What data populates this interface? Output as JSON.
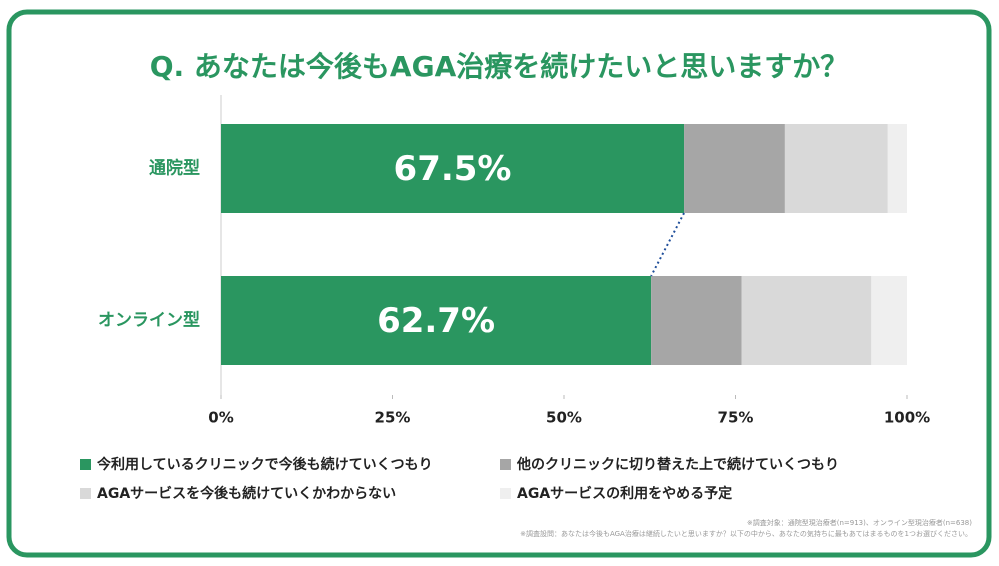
{
  "chart_data": {
    "type": "stacked-barh",
    "title": "Q. あなたは今後もAGA治療を続けたいと思いますか？",
    "categories": [
      "通院型",
      "オンライン型"
    ],
    "series": [
      {
        "name": "今利用しているクリニックで今後も続けていくつもり",
        "color": "#2a9660",
        "values": [
          67.5,
          62.7
        ],
        "value_labels": [
          "67.5%",
          "62.7%"
        ]
      },
      {
        "name": "他のクリニックに切り替えた上で続けていくつもり",
        "color": "#a6a6a6",
        "values": [
          14.7,
          13.2
        ]
      },
      {
        "name": "AGAサービスを今後も続けていくかわからない",
        "color": "#d9d9d9",
        "values": [
          15.0,
          18.9
        ]
      },
      {
        "name": "AGAサービスの利用をやめる予定",
        "color": "#efefef",
        "values": [
          2.8,
          5.2
        ]
      }
    ],
    "xlim": [
      0,
      100
    ],
    "xticks": [
      {
        "value": 0,
        "label": "0%"
      },
      {
        "value": 25,
        "label": "25%"
      },
      {
        "value": 50,
        "label": "50%"
      },
      {
        "value": 75,
        "label": "75%"
      },
      {
        "value": 100,
        "label": "100%"
      }
    ],
    "notes": [
      "※調査対象：通院型現治療者(n=913)、オンライン型現治療者(n=638)",
      "※調査設問：あなたは今後もAGA治療は継続したいと思いますか？以下の中から、あなたの気持ちに最もあてはまるものを1つお選びください。"
    ]
  }
}
